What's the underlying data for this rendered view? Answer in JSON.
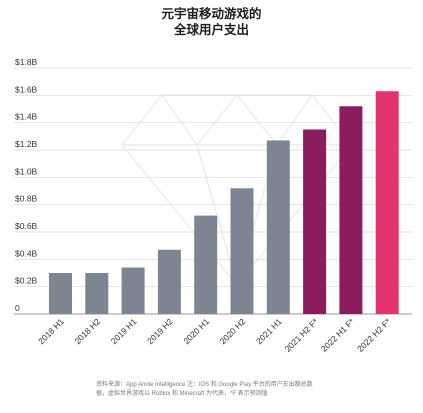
{
  "title_lines": [
    "元宇宙移动游戏的",
    "全球用户支出"
  ],
  "chart_data": {
    "type": "bar",
    "categories": [
      "2018 H1",
      "2018 H2",
      "2019 H1",
      "2019 H2",
      "2020 H1",
      "2020 H2",
      "2021 H1",
      "2021 H2 F*",
      "2022 H1 F*",
      "2022 H2 F*"
    ],
    "values": [
      0.3,
      0.3,
      0.34,
      0.47,
      0.72,
      0.92,
      1.27,
      1.35,
      1.52,
      1.63
    ],
    "forecast": [
      false,
      false,
      false,
      false,
      false,
      false,
      false,
      true,
      true,
      false
    ],
    "ytick_labels": [
      "0",
      "$0.2B",
      "$0.4B",
      "$0.6B",
      "$0.8B",
      "$1.0B",
      "$1.2B",
      "$1.4B",
      "$1.6B",
      "$1.8B"
    ],
    "ytick_values": [
      0,
      0.2,
      0.4,
      0.6,
      0.8,
      1.0,
      1.2,
      1.4,
      1.6,
      1.8
    ],
    "ylim": [
      0,
      1.8
    ],
    "grid": true,
    "colors": {
      "actual": "#7d8592",
      "forecast": "#8b1d5e",
      "last": "#e5336d"
    }
  },
  "source_lines": [
    "资料来源：App Annie Intelligence 注：iOS 和 Google Play 平台的用户支出额总数",
    "据，虚拟世界游戏以 Roblox 和 Minecraft 为代表，*F 表示预测值"
  ]
}
